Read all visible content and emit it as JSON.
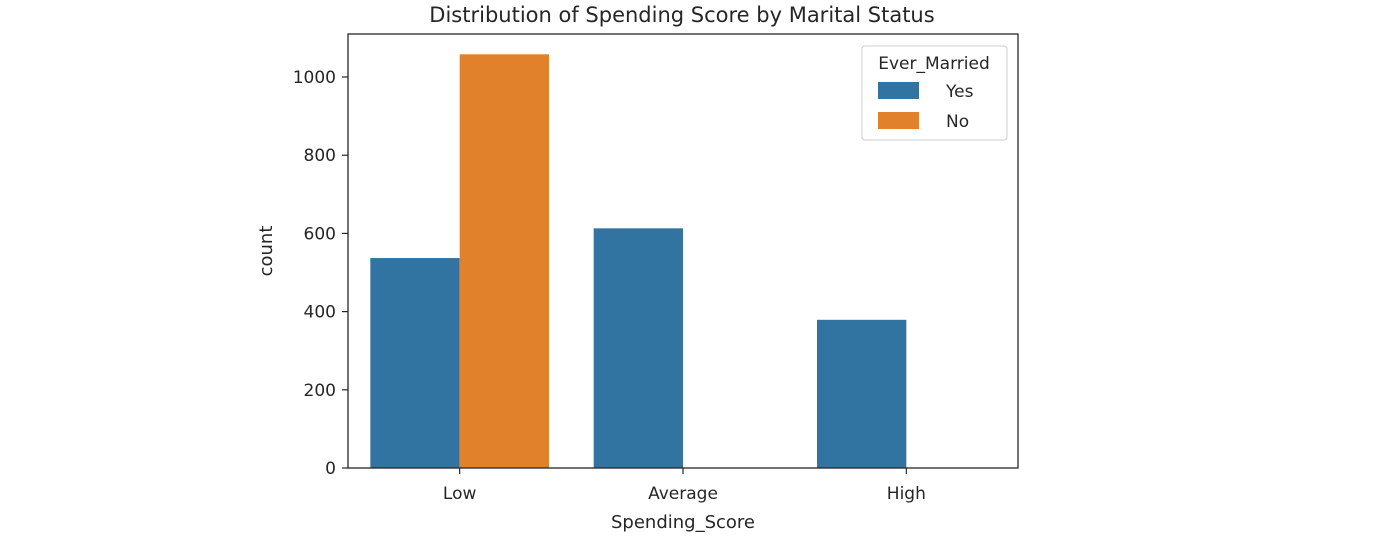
{
  "chart_data": {
    "type": "bar",
    "title": "Distribution of Spending Score by Marital Status",
    "xlabel": "Spending_Score",
    "ylabel": "count",
    "categories": [
      "Low",
      "Average",
      "High"
    ],
    "series": [
      {
        "name": "Yes",
        "values": [
          537,
          613,
          379
        ],
        "color": "#3274a1"
      },
      {
        "name": "No",
        "values": [
          1058,
          0,
          0
        ],
        "color": "#e1812c"
      }
    ],
    "ylim": [
      0,
      1110
    ],
    "yticks": [
      0,
      200,
      400,
      600,
      800,
      1000
    ],
    "legend": {
      "title": "Ever_Married",
      "placement": "top-right"
    },
    "grid": false
  }
}
